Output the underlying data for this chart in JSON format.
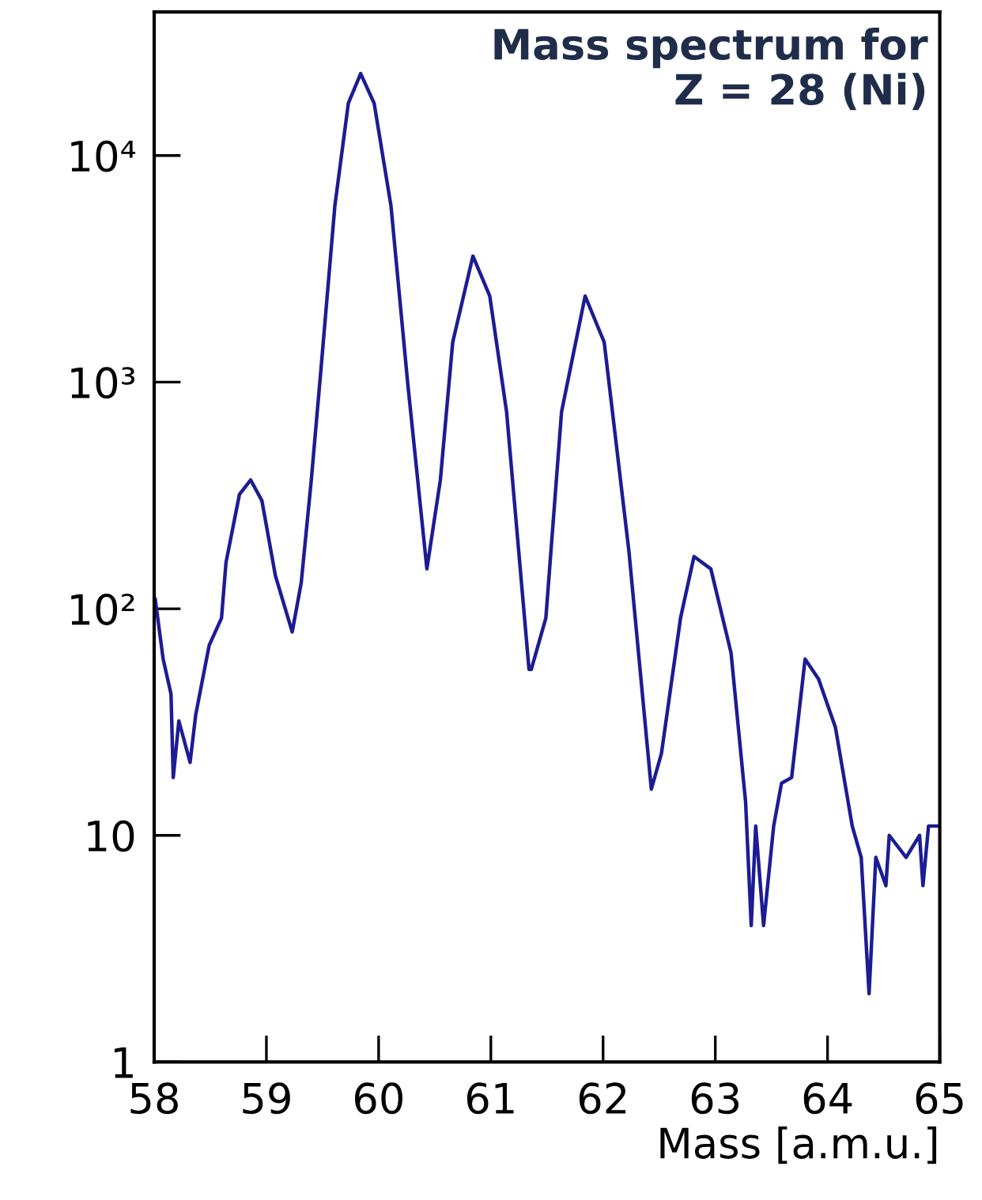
{
  "chart_data": {
    "type": "line",
    "title": "Mass spectrum for\nZ = 28 (Ni)",
    "xlabel": "Mass [a.m.u.]",
    "xlim": [
      58,
      65
    ],
    "xticks": [
      58,
      59,
      60,
      61,
      62,
      63,
      64,
      65
    ],
    "ylim": [
      1,
      43000
    ],
    "yticks": [
      1,
      10,
      {
        "value": 100,
        "label": "10²"
      },
      {
        "value": 1000,
        "label": "10³"
      },
      {
        "value": 10000,
        "label": "10⁴"
      }
    ],
    "log": "y",
    "grid": false,
    "line_style": "solid",
    "series": [
      {
        "color": "#1c1c94",
        "x": [
          58.01,
          58.08,
          58.15,
          58.17,
          58.22,
          58.32,
          58.37,
          58.49,
          58.6,
          58.64,
          58.76,
          58.86,
          58.96,
          59.08,
          59.23,
          59.31,
          59.4,
          59.49,
          59.61,
          59.73,
          59.84,
          59.96,
          60.11,
          60.26,
          60.43,
          60.55,
          60.66,
          60.84,
          60.99,
          61.14,
          61.34,
          61.36,
          61.49,
          61.63,
          61.84,
          62.01,
          62.23,
          62.43,
          62.52,
          62.69,
          62.81,
          62.96,
          63.14,
          63.27,
          63.32,
          63.36,
          63.43,
          63.52,
          63.59,
          63.68,
          63.8,
          63.92,
          64.07,
          64.22,
          64.3,
          64.37,
          64.43,
          64.52,
          64.55,
          64.7,
          64.82,
          64.85,
          64.9,
          64.98
        ],
        "values": [
          110,
          60,
          42,
          18,
          32,
          21,
          34,
          69,
          91,
          160,
          320,
          370,
          300,
          140,
          79,
          130,
          370,
          1200,
          6000,
          17000,
          23000,
          17000,
          6000,
          980,
          150,
          370,
          1500,
          3600,
          2400,
          740,
          54,
          54,
          91,
          740,
          2400,
          1500,
          180,
          16,
          23,
          91,
          170,
          150,
          64,
          14,
          4,
          11,
          4,
          11,
          17,
          18,
          60,
          49,
          30,
          11,
          8,
          2,
          8,
          6,
          10,
          8,
          10,
          6,
          11,
          11
        ]
      }
    ]
  }
}
